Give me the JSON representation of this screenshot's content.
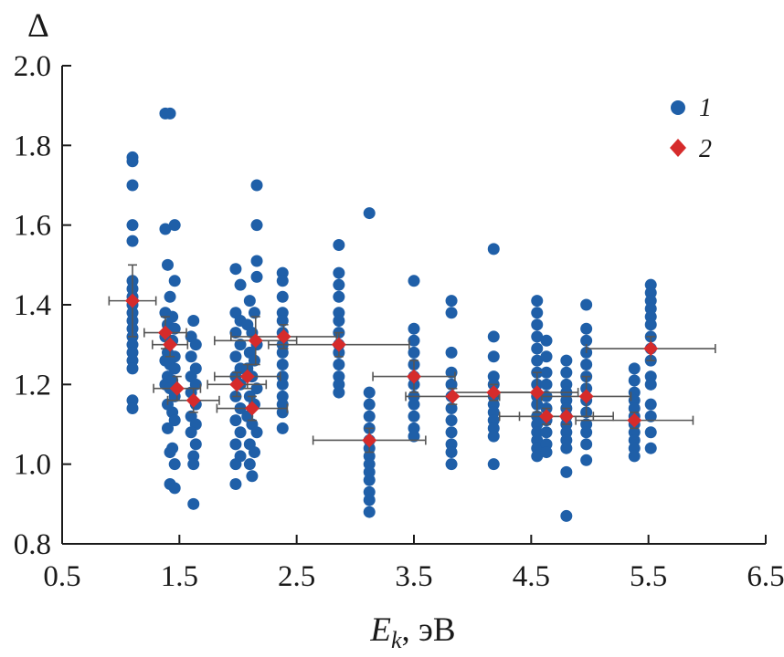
{
  "chart_data": {
    "type": "scatter",
    "ylabel": "Δ",
    "xlabel": {
      "symbol": "E",
      "subscript": "k",
      "unit": ", эВ"
    },
    "xlim": [
      0.5,
      6.5
    ],
    "ylim": [
      0.8,
      2.0
    ],
    "xticks": [
      "0.5",
      "1.5",
      "2.5",
      "3.5",
      "4.5",
      "5.5",
      "6.5"
    ],
    "yticks": [
      "0.8",
      "1.0",
      "1.2",
      "1.4",
      "1.6",
      "1.8",
      "2.0"
    ],
    "colors": {
      "series1": "#1f5fa8",
      "series2": "#d62b2b",
      "error": "#555555",
      "axis": "#1a1a1a"
    },
    "series": [
      {
        "name": "1",
        "marker": "circle",
        "points": [
          [
            1.1,
            1.77
          ],
          [
            1.1,
            1.76
          ],
          [
            1.1,
            1.7
          ],
          [
            1.1,
            1.6
          ],
          [
            1.1,
            1.56
          ],
          [
            1.1,
            1.46
          ],
          [
            1.1,
            1.44
          ],
          [
            1.1,
            1.42
          ],
          [
            1.1,
            1.4
          ],
          [
            1.1,
            1.38
          ],
          [
            1.1,
            1.36
          ],
          [
            1.1,
            1.34
          ],
          [
            1.1,
            1.32
          ],
          [
            1.1,
            1.3
          ],
          [
            1.1,
            1.28
          ],
          [
            1.1,
            1.26
          ],
          [
            1.1,
            1.24
          ],
          [
            1.1,
            1.16
          ],
          [
            1.1,
            1.14
          ],
          [
            1.38,
            1.88
          ],
          [
            1.42,
            1.88
          ],
          [
            1.38,
            1.59
          ],
          [
            1.46,
            1.6
          ],
          [
            1.4,
            1.5
          ],
          [
            1.46,
            1.46
          ],
          [
            1.42,
            1.42
          ],
          [
            1.38,
            1.38
          ],
          [
            1.44,
            1.37
          ],
          [
            1.4,
            1.35
          ],
          [
            1.46,
            1.34
          ],
          [
            1.38,
            1.32
          ],
          [
            1.44,
            1.31
          ],
          [
            1.4,
            1.28
          ],
          [
            1.46,
            1.27
          ],
          [
            1.38,
            1.26
          ],
          [
            1.42,
            1.25
          ],
          [
            1.46,
            1.24
          ],
          [
            1.4,
            1.22
          ],
          [
            1.44,
            1.21
          ],
          [
            1.38,
            1.2
          ],
          [
            1.42,
            1.19
          ],
          [
            1.46,
            1.17
          ],
          [
            1.4,
            1.15
          ],
          [
            1.44,
            1.13
          ],
          [
            1.46,
            1.11
          ],
          [
            1.4,
            1.09
          ],
          [
            1.44,
            1.04
          ],
          [
            1.42,
            1.03
          ],
          [
            1.46,
            1.0
          ],
          [
            1.42,
            0.95
          ],
          [
            1.46,
            0.94
          ],
          [
            1.62,
            1.36
          ],
          [
            1.6,
            1.32
          ],
          [
            1.64,
            1.3
          ],
          [
            1.6,
            1.27
          ],
          [
            1.64,
            1.24
          ],
          [
            1.6,
            1.22
          ],
          [
            1.64,
            1.2
          ],
          [
            1.6,
            1.18
          ],
          [
            1.64,
            1.15
          ],
          [
            1.6,
            1.12
          ],
          [
            1.64,
            1.1
          ],
          [
            1.6,
            1.08
          ],
          [
            1.64,
            1.05
          ],
          [
            1.62,
            1.02
          ],
          [
            1.62,
            1.0
          ],
          [
            1.62,
            0.9
          ],
          [
            1.98,
            1.49
          ],
          [
            2.02,
            1.45
          ],
          [
            1.98,
            1.38
          ],
          [
            2.02,
            1.36
          ],
          [
            1.98,
            1.33
          ],
          [
            2.02,
            1.3
          ],
          [
            1.98,
            1.27
          ],
          [
            2.02,
            1.24
          ],
          [
            1.98,
            1.22
          ],
          [
            2.02,
            1.2
          ],
          [
            1.98,
            1.17
          ],
          [
            2.02,
            1.14
          ],
          [
            1.98,
            1.11
          ],
          [
            2.02,
            1.08
          ],
          [
            1.98,
            1.05
          ],
          [
            2.02,
            1.02
          ],
          [
            1.98,
            1.0
          ],
          [
            1.98,
            0.95
          ],
          [
            2.1,
            1.41
          ],
          [
            2.14,
            1.38
          ],
          [
            2.08,
            1.35
          ],
          [
            2.12,
            1.33
          ],
          [
            2.16,
            1.3
          ],
          [
            2.1,
            1.28
          ],
          [
            2.14,
            1.26
          ],
          [
            2.08,
            1.24
          ],
          [
            2.12,
            1.22
          ],
          [
            2.16,
            1.19
          ],
          [
            2.1,
            1.17
          ],
          [
            2.14,
            1.15
          ],
          [
            2.08,
            1.12
          ],
          [
            2.12,
            1.1
          ],
          [
            2.16,
            1.08
          ],
          [
            2.1,
            1.05
          ],
          [
            2.14,
            1.03
          ],
          [
            2.1,
            1.0
          ],
          [
            2.12,
            0.97
          ],
          [
            2.16,
            1.7
          ],
          [
            2.16,
            1.6
          ],
          [
            2.16,
            1.51
          ],
          [
            2.16,
            1.47
          ],
          [
            2.38,
            1.48
          ],
          [
            2.38,
            1.46
          ],
          [
            2.38,
            1.42
          ],
          [
            2.38,
            1.38
          ],
          [
            2.38,
            1.36
          ],
          [
            2.38,
            1.33
          ],
          [
            2.38,
            1.3
          ],
          [
            2.38,
            1.28
          ],
          [
            2.38,
            1.25
          ],
          [
            2.38,
            1.22
          ],
          [
            2.38,
            1.2
          ],
          [
            2.38,
            1.17
          ],
          [
            2.38,
            1.15
          ],
          [
            2.38,
            1.13
          ],
          [
            2.38,
            1.09
          ],
          [
            2.86,
            1.55
          ],
          [
            2.86,
            1.48
          ],
          [
            2.86,
            1.45
          ],
          [
            2.86,
            1.42
          ],
          [
            2.86,
            1.38
          ],
          [
            2.86,
            1.36
          ],
          [
            2.86,
            1.33
          ],
          [
            2.86,
            1.3
          ],
          [
            2.86,
            1.28
          ],
          [
            2.86,
            1.25
          ],
          [
            2.86,
            1.22
          ],
          [
            2.86,
            1.2
          ],
          [
            2.86,
            1.18
          ],
          [
            3.12,
            1.63
          ],
          [
            3.12,
            1.18
          ],
          [
            3.12,
            1.15
          ],
          [
            3.12,
            1.12
          ],
          [
            3.12,
            1.09
          ],
          [
            3.12,
            1.06
          ],
          [
            3.12,
            1.04
          ],
          [
            3.12,
            1.02
          ],
          [
            3.12,
            1.0
          ],
          [
            3.12,
            0.98
          ],
          [
            3.12,
            0.96
          ],
          [
            3.12,
            0.93
          ],
          [
            3.12,
            0.91
          ],
          [
            3.12,
            0.88
          ],
          [
            3.5,
            1.46
          ],
          [
            3.5,
            1.34
          ],
          [
            3.5,
            1.31
          ],
          [
            3.5,
            1.28
          ],
          [
            3.5,
            1.25
          ],
          [
            3.5,
            1.22
          ],
          [
            3.5,
            1.2
          ],
          [
            3.5,
            1.17
          ],
          [
            3.5,
            1.15
          ],
          [
            3.5,
            1.12
          ],
          [
            3.5,
            1.09
          ],
          [
            3.5,
            1.07
          ],
          [
            3.82,
            1.41
          ],
          [
            3.82,
            1.38
          ],
          [
            3.82,
            1.28
          ],
          [
            3.82,
            1.23
          ],
          [
            3.82,
            1.2
          ],
          [
            3.82,
            1.17
          ],
          [
            3.82,
            1.14
          ],
          [
            3.82,
            1.11
          ],
          [
            3.82,
            1.08
          ],
          [
            3.82,
            1.05
          ],
          [
            3.82,
            1.03
          ],
          [
            3.82,
            1.0
          ],
          [
            4.18,
            1.54
          ],
          [
            4.18,
            1.32
          ],
          [
            4.18,
            1.27
          ],
          [
            4.18,
            1.22
          ],
          [
            4.18,
            1.2
          ],
          [
            4.18,
            1.17
          ],
          [
            4.18,
            1.15
          ],
          [
            4.18,
            1.13
          ],
          [
            4.18,
            1.11
          ],
          [
            4.18,
            1.09
          ],
          [
            4.18,
            1.07
          ],
          [
            4.18,
            1.0
          ],
          [
            4.55,
            1.41
          ],
          [
            4.55,
            1.38
          ],
          [
            4.55,
            1.35
          ],
          [
            4.55,
            1.32
          ],
          [
            4.55,
            1.29
          ],
          [
            4.55,
            1.26
          ],
          [
            4.55,
            1.23
          ],
          [
            4.55,
            1.2
          ],
          [
            4.55,
            1.17
          ],
          [
            4.55,
            1.15
          ],
          [
            4.55,
            1.12
          ],
          [
            4.55,
            1.1
          ],
          [
            4.55,
            1.08
          ],
          [
            4.55,
            1.06
          ],
          [
            4.55,
            1.04
          ],
          [
            4.55,
            1.02
          ],
          [
            4.63,
            1.31
          ],
          [
            4.63,
            1.27
          ],
          [
            4.63,
            1.23
          ],
          [
            4.63,
            1.2
          ],
          [
            4.63,
            1.17
          ],
          [
            4.63,
            1.14
          ],
          [
            4.63,
            1.11
          ],
          [
            4.63,
            1.08
          ],
          [
            4.63,
            1.05
          ],
          [
            4.63,
            1.03
          ],
          [
            4.8,
            1.26
          ],
          [
            4.8,
            1.23
          ],
          [
            4.8,
            1.2
          ],
          [
            4.8,
            1.18
          ],
          [
            4.8,
            1.16
          ],
          [
            4.8,
            1.14
          ],
          [
            4.8,
            1.12
          ],
          [
            4.8,
            1.1
          ],
          [
            4.8,
            1.08
          ],
          [
            4.8,
            1.06
          ],
          [
            4.8,
            1.04
          ],
          [
            4.8,
            0.98
          ],
          [
            4.8,
            0.87
          ],
          [
            4.97,
            1.4
          ],
          [
            4.97,
            1.34
          ],
          [
            4.97,
            1.31
          ],
          [
            4.97,
            1.28
          ],
          [
            4.97,
            1.25
          ],
          [
            4.97,
            1.22
          ],
          [
            4.97,
            1.19
          ],
          [
            4.97,
            1.16
          ],
          [
            4.97,
            1.13
          ],
          [
            4.97,
            1.1
          ],
          [
            4.97,
            1.08
          ],
          [
            4.97,
            1.05
          ],
          [
            4.97,
            1.01
          ],
          [
            5.38,
            1.24
          ],
          [
            5.38,
            1.21
          ],
          [
            5.38,
            1.18
          ],
          [
            5.38,
            1.16
          ],
          [
            5.38,
            1.14
          ],
          [
            5.38,
            1.12
          ],
          [
            5.38,
            1.1
          ],
          [
            5.38,
            1.08
          ],
          [
            5.38,
            1.06
          ],
          [
            5.38,
            1.04
          ],
          [
            5.38,
            1.02
          ],
          [
            5.52,
            1.45
          ],
          [
            5.52,
            1.43
          ],
          [
            5.52,
            1.41
          ],
          [
            5.52,
            1.39
          ],
          [
            5.52,
            1.37
          ],
          [
            5.52,
            1.35
          ],
          [
            5.52,
            1.32
          ],
          [
            5.52,
            1.29
          ],
          [
            5.52,
            1.26
          ],
          [
            5.52,
            1.22
          ],
          [
            5.52,
            1.2
          ],
          [
            5.52,
            1.15
          ],
          [
            5.52,
            1.12
          ],
          [
            5.52,
            1.08
          ],
          [
            5.52,
            1.04
          ]
        ]
      },
      {
        "name": "2",
        "marker": "diamond",
        "points": [
          {
            "x": 1.1,
            "y": 1.41,
            "xerr": 0.2,
            "yerr": 0.09
          },
          {
            "x": 1.38,
            "y": 1.33,
            "xerr": 0.18,
            "yerr": 0.04
          },
          {
            "x": 1.42,
            "y": 1.3,
            "xerr": 0.15,
            "yerr": 0.03
          },
          {
            "x": 1.48,
            "y": 1.19,
            "xerr": 0.2,
            "yerr": 0.03
          },
          {
            "x": 1.62,
            "y": 1.16,
            "xerr": 0.22,
            "yerr": 0.03
          },
          {
            "x": 1.99,
            "y": 1.2,
            "xerr": 0.25,
            "yerr": 0.03
          },
          {
            "x": 2.08,
            "y": 1.22,
            "xerr": 0.28,
            "yerr": 0.03
          },
          {
            "x": 2.12,
            "y": 1.14,
            "xerr": 0.3,
            "yerr": 0.03
          },
          {
            "x": 2.15,
            "y": 1.31,
            "xerr": 0.35,
            "yerr": 0.06
          },
          {
            "x": 2.39,
            "y": 1.32,
            "xerr": 0.45,
            "yerr": 0.03
          },
          {
            "x": 2.86,
            "y": 1.3,
            "xerr": 0.6,
            "yerr": 0.03
          },
          {
            "x": 3.12,
            "y": 1.06,
            "xerr": 0.48,
            "yerr": 0.03
          },
          {
            "x": 3.5,
            "y": 1.22,
            "xerr": 0.35,
            "yerr": 0.04
          },
          {
            "x": 3.83,
            "y": 1.17,
            "xerr": 0.4,
            "yerr": 0.02
          },
          {
            "x": 4.18,
            "y": 1.18,
            "xerr": 0.35,
            "yerr": 0.02
          },
          {
            "x": 4.55,
            "y": 1.18,
            "xerr": 0.35,
            "yerr": 0.05
          },
          {
            "x": 4.63,
            "y": 1.12,
            "xerr": 0.4,
            "yerr": 0.02
          },
          {
            "x": 4.8,
            "y": 1.12,
            "xerr": 0.4,
            "yerr": 0.02
          },
          {
            "x": 4.97,
            "y": 1.17,
            "xerr": 0.38,
            "yerr": 0.05
          },
          {
            "x": 5.38,
            "y": 1.11,
            "xerr": 0.5,
            "yerr": 0.02
          },
          {
            "x": 5.52,
            "y": 1.29,
            "xerr": 0.55,
            "yerr": 0.03
          }
        ]
      }
    ],
    "legend": {
      "position": "top-right",
      "entries": [
        "1",
        "2"
      ]
    }
  }
}
